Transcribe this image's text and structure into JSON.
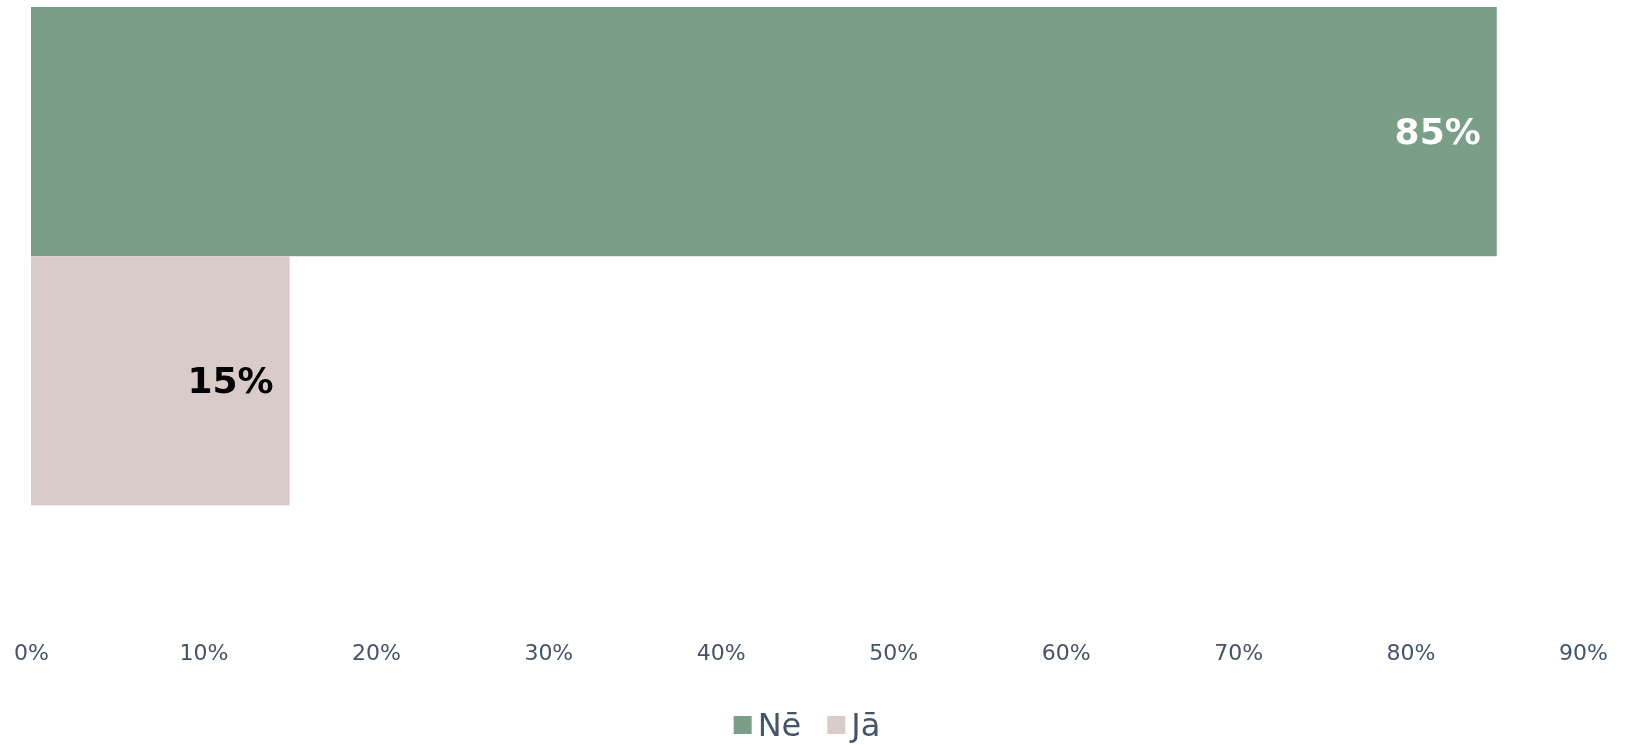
{
  "chart_data": {
    "type": "bar",
    "orientation": "horizontal",
    "categories": [
      null
    ],
    "series": [
      {
        "name": "Nē",
        "color": "#7b9e89",
        "values": [
          85
        ],
        "value_labels": [
          "85%"
        ]
      },
      {
        "name": "Jā",
        "color": "#d9cbc8",
        "values": [
          15
        ],
        "value_labels": [
          "15%"
        ]
      }
    ],
    "xlim": [
      0,
      90
    ],
    "xticks": [
      {
        "value": 0,
        "label": "0%"
      },
      {
        "value": 10,
        "label": "10%"
      },
      {
        "value": 20,
        "label": "20%"
      },
      {
        "value": 30,
        "label": "30%"
      },
      {
        "value": 40,
        "label": "40%"
      },
      {
        "value": 50,
        "label": "50%"
      },
      {
        "value": 60,
        "label": "60%"
      },
      {
        "value": 70,
        "label": "70%"
      },
      {
        "value": 80,
        "label": "80%"
      },
      {
        "value": 90,
        "label": "90%"
      }
    ],
    "legend": "bottom"
  }
}
